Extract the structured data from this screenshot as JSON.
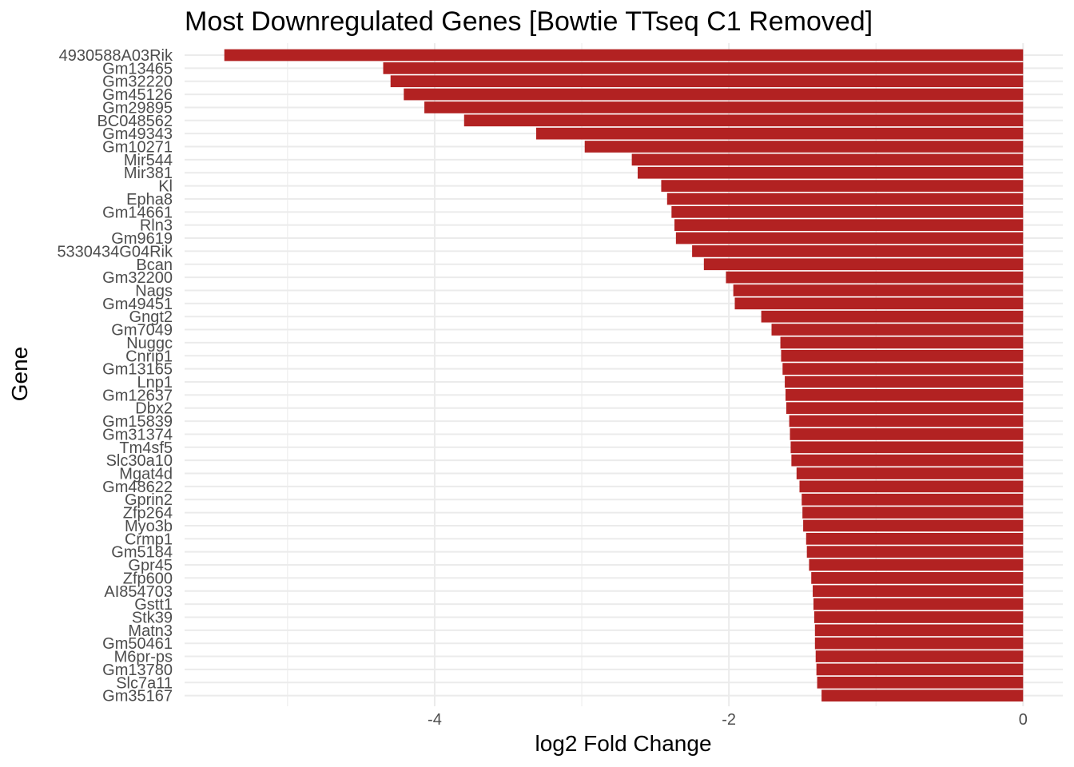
{
  "chart_data": {
    "type": "bar",
    "orientation": "horizontal",
    "title": "Most Downregulated Genes [Bowtie TTseq C1 Removed]",
    "xlabel": "log2 Fold Change",
    "ylabel": "Gene",
    "xlim": [
      -5.7,
      0.27
    ],
    "xticks": [
      -4,
      -2,
      0
    ],
    "xtick_labels": [
      "-4",
      "-2",
      "0"
    ],
    "grid": true,
    "bar_color": "#B22222",
    "categories": [
      "4930588A03Rik",
      "Gm13465",
      "Gm32220",
      "Gm45126",
      "Gm29895",
      "BC048562",
      "Gm49343",
      "Gm10271",
      "Mir544",
      "Mir381",
      "Kl",
      "Epha8",
      "Gm14661",
      "Rln3",
      "Gm9619",
      "5330434G04Rik",
      "Bcan",
      "Gm32200",
      "Nags",
      "Gm49451",
      "Gngt2",
      "Gm7049",
      "Nuggc",
      "Cnrip1",
      "Gm13165",
      "Lnp1",
      "Gm12637",
      "Dbx2",
      "Gm15839",
      "Gm31374",
      "Tm4sf5",
      "Slc30a10",
      "Mgat4d",
      "Gm48622",
      "Gprin2",
      "Zfp264",
      "Myo3b",
      "Crmp1",
      "Gm5184",
      "Gpr45",
      "Zfp600",
      "AI854703",
      "Gstt1",
      "Stk39",
      "Matn3",
      "Gm50461",
      "M6pr-ps",
      "Gm13780",
      "Slc7a11",
      "Gm35167"
    ],
    "values": [
      -5.43,
      -4.35,
      -4.3,
      -4.21,
      -4.07,
      -3.8,
      -3.31,
      -2.98,
      -2.66,
      -2.62,
      -2.46,
      -2.42,
      -2.39,
      -2.37,
      -2.36,
      -2.25,
      -2.17,
      -2.02,
      -1.97,
      -1.96,
      -1.78,
      -1.71,
      -1.65,
      -1.645,
      -1.635,
      -1.62,
      -1.615,
      -1.61,
      -1.59,
      -1.585,
      -1.58,
      -1.575,
      -1.54,
      -1.52,
      -1.505,
      -1.5,
      -1.495,
      -1.475,
      -1.47,
      -1.455,
      -1.44,
      -1.43,
      -1.425,
      -1.42,
      -1.415,
      -1.415,
      -1.41,
      -1.405,
      -1.4,
      -1.37
    ]
  }
}
